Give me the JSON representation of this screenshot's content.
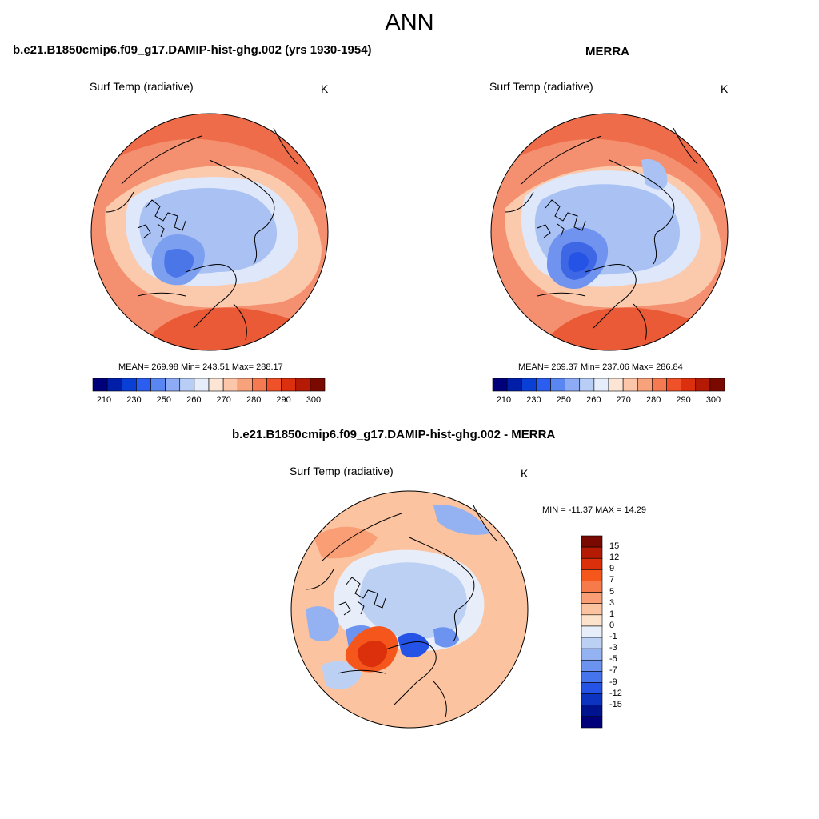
{
  "page_title": "ANN",
  "panels": [
    {
      "title": "b.e21.B1850cmip6.f09_g17.DAMIP-hist-ghg.002 (yrs 1930-1954)",
      "variable": "Surf Temp (radiative)",
      "units": "K",
      "stats": "MEAN= 269.98  Min= 243.51  Max= 288.17"
    },
    {
      "title": "MERRA",
      "variable": "Surf Temp (radiative)",
      "units": "K",
      "stats": "MEAN= 269.37  Min= 237.06  Max= 286.84"
    },
    {
      "title": "b.e21.B1850cmip6.f09_g17.DAMIP-hist-ghg.002 - MERRA",
      "variable": "Surf Temp (radiative)",
      "units": "K",
      "stats": "MIN = -11.37 MAX =  14.29"
    }
  ],
  "abs_colorbar": {
    "colors": [
      "#00007a",
      "#001fa8",
      "#0a3fd6",
      "#2b5ef0",
      "#5a86f2",
      "#8cabf4",
      "#b9cef6",
      "#e6eefb",
      "#fde5d6",
      "#fbc6a9",
      "#f8a27c",
      "#f57a52",
      "#ef5128",
      "#dc2f0e",
      "#b51a05",
      "#7a0a00"
    ],
    "labels": [
      "210",
      "230",
      "250",
      "260",
      "270",
      "280",
      "290",
      "300"
    ]
  },
  "diff_colorbar": {
    "colors": [
      "#7a0a00",
      "#b51a05",
      "#dc300d",
      "#f5561c",
      "#f77a4a",
      "#f99e75",
      "#fbc39f",
      "#fde3cc",
      "#e8eef9",
      "#bcd0f4",
      "#94b2f2",
      "#6d93f0",
      "#4673ee",
      "#2553e6",
      "#0d34c0",
      "#00138e",
      "#00007a"
    ],
    "labels": [
      "15",
      "12",
      "9",
      "7",
      "5",
      "3",
      "1",
      "0",
      "-1",
      "-3",
      "-5",
      "-7",
      "-9",
      "-12",
      "-15"
    ]
  },
  "colors": {
    "warm": "#f3866a",
    "warm_deep": "#ea5a36",
    "mild": "#fbc9ac",
    "cold": "#a9c1f3",
    "very_cold": "#4a76e8",
    "coast": "#000000"
  }
}
